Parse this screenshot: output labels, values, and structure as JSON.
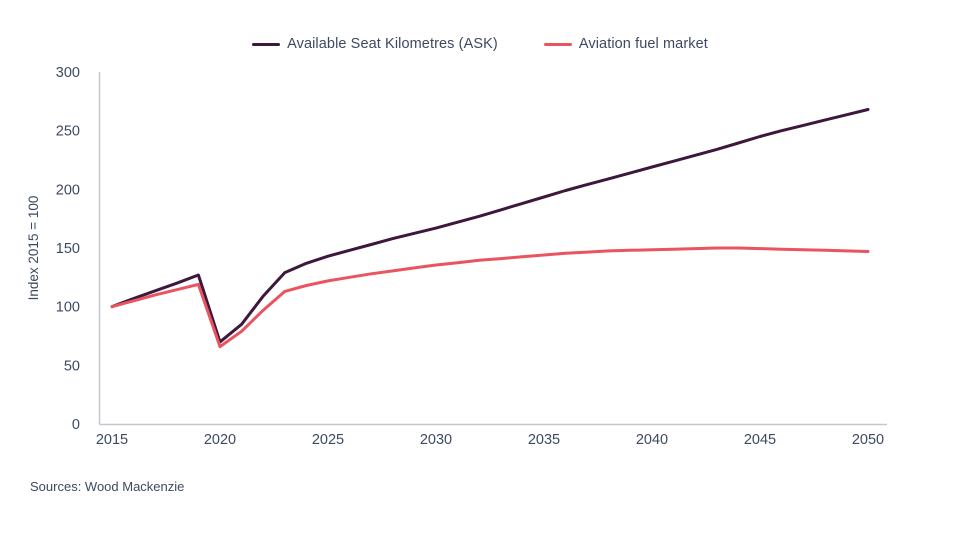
{
  "chart_data": {
    "type": "line",
    "title": "",
    "xlabel": "",
    "ylabel": "Index 2015 = 100",
    "x_ticks": [
      2015,
      2020,
      2025,
      2030,
      2035,
      2040,
      2045,
      2050
    ],
    "y_ticks": [
      0,
      50,
      100,
      150,
      200,
      250,
      300
    ],
    "xlim": [
      2015,
      2050
    ],
    "ylim": [
      0,
      300
    ],
    "grid": false,
    "legend_position": "top-center",
    "x": [
      2015,
      2016,
      2017,
      2018,
      2019,
      2020,
      2021,
      2022,
      2023,
      2024,
      2025,
      2026,
      2027,
      2028,
      2029,
      2030,
      2031,
      2032,
      2033,
      2034,
      2035,
      2036,
      2037,
      2038,
      2039,
      2040,
      2041,
      2042,
      2043,
      2044,
      2045,
      2046,
      2047,
      2048,
      2049,
      2050
    ],
    "series": [
      {
        "name": "Available Seat Kilometres (ASK)",
        "color": "#3d173c",
        "values": [
          100,
          107,
          113.5,
          120,
          127,
          70,
          85,
          109,
          129,
          137,
          143,
          148,
          153,
          158,
          162.5,
          167,
          172,
          177,
          182.5,
          188,
          193.5,
          199,
          204,
          209,
          214,
          219,
          224,
          229,
          234,
          239.5,
          245,
          250,
          254.5,
          259,
          263.5,
          268
        ]
      },
      {
        "name": "Aviation fuel market",
        "color": "#ea5460",
        "values": [
          100,
          105,
          110,
          114.5,
          119,
          66,
          79,
          97,
          113,
          118,
          122,
          125,
          128,
          130.5,
          133,
          135.5,
          137.5,
          139.5,
          141,
          142.5,
          144,
          145.5,
          146.5,
          147.5,
          148,
          148.5,
          149,
          149.5,
          150,
          150,
          149.5,
          149,
          148.5,
          148,
          147.5,
          147
        ]
      }
    ]
  },
  "source": {
    "text": "Sources: Wood Mackenzie"
  },
  "style": {
    "text_color": "#3e4961",
    "axis_color": "#c4c7cd",
    "background": "#ffffff"
  }
}
